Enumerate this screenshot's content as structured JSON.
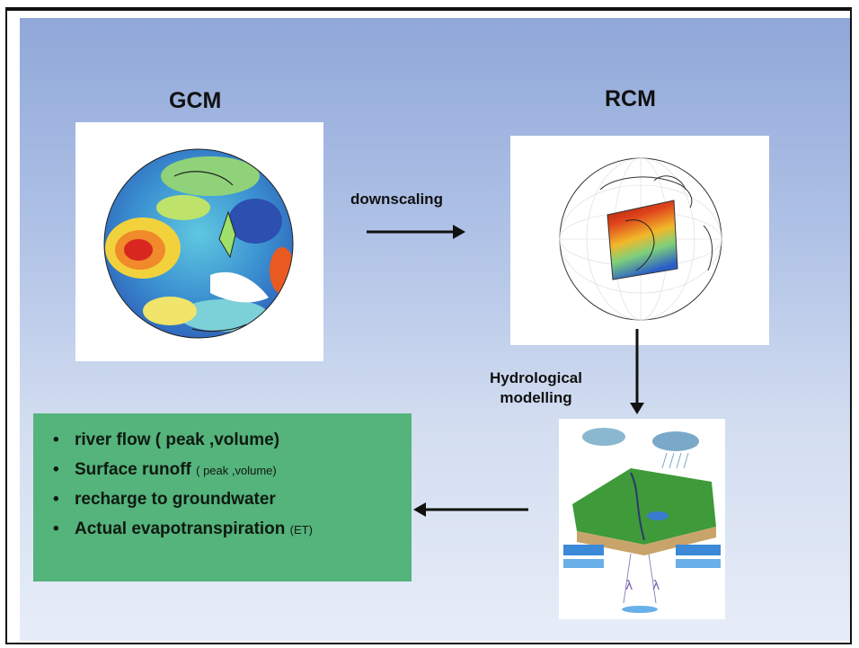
{
  "gcm": {
    "title": "GCM"
  },
  "rcm": {
    "title": "RCM"
  },
  "arrows": {
    "downscaling": "downscaling",
    "hydro_line1": "Hydrological",
    "hydro_line2": "modelling"
  },
  "outputs": [
    {
      "text": "river flow ( peak ,volume)",
      "note": ""
    },
    {
      "text": "Surface  runoff ",
      "note": "( peak ,volume)"
    },
    {
      "text": "recharge to groundwater",
      "note": ""
    },
    {
      "text": "Actual evapotranspiration ",
      "note": "(ET)"
    }
  ],
  "colors": {
    "output_box": "#55b37c",
    "background_top": "#90a8d9"
  }
}
